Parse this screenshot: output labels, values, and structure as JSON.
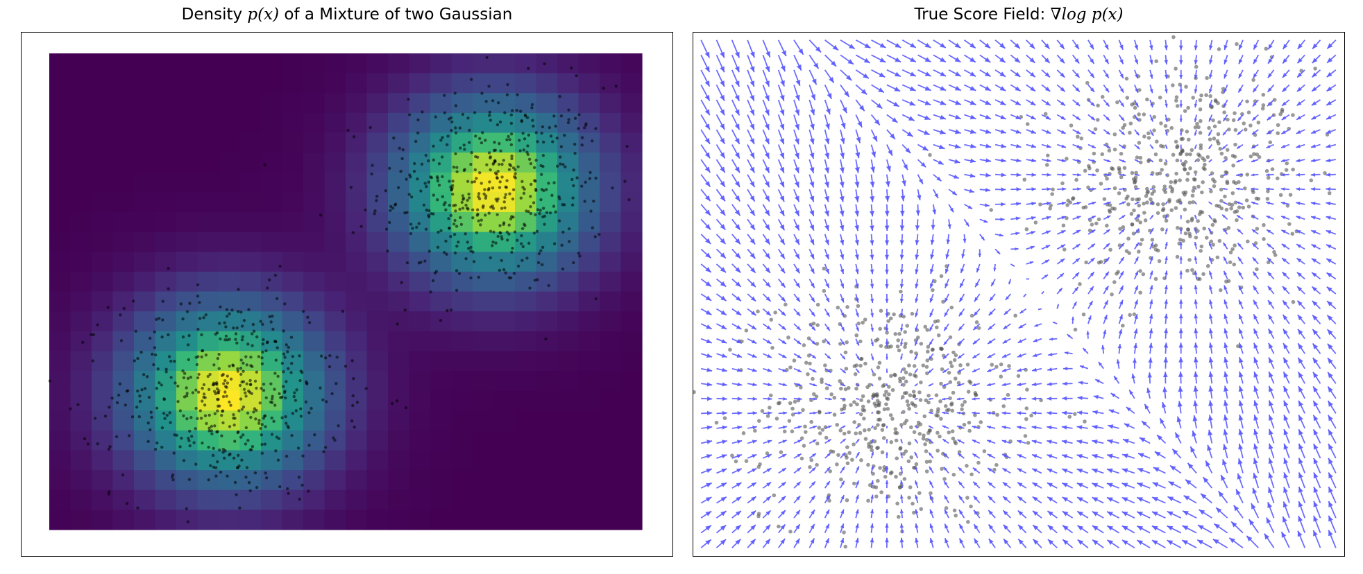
{
  "chart_data": [
    {
      "type": "heatmap",
      "title_prefix": "Density",
      "title_math": "p(x)",
      "title_suffix": "of a Mixture of two Gaussian",
      "colormap": "viridis",
      "axes_visible": false,
      "x_range": [
        -4,
        4
      ],
      "y_range": [
        -3.5,
        3.5
      ],
      "components": [
        {
          "mean": [
            2.0,
            1.5
          ],
          "std": 0.9,
          "weight": 0.5
        },
        {
          "mean": [
            -1.6,
            -1.5
          ],
          "std": 0.9,
          "weight": 0.5
        }
      ],
      "samples_per_component": 500,
      "sample_color": "#000000"
    },
    {
      "type": "quiver",
      "title_prefix": "True Score Field:",
      "title_math": "∇log p(x)",
      "axes_visible": false,
      "x_range": [
        -4,
        4
      ],
      "y_range": [
        -3.5,
        3.5
      ],
      "grid_cols": 42,
      "grid_rows": 35,
      "arrow_color": "#5b5bff",
      "sample_color": "#555555",
      "samples_per_component": 500
    }
  ]
}
